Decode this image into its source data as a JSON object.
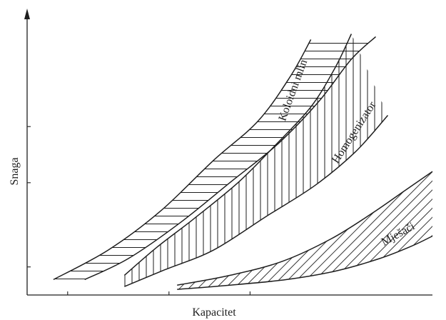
{
  "chart_data": {
    "type": "area",
    "title": "",
    "xlabel": "Kapacitet",
    "ylabel": "Snaga",
    "xlim": [
      0,
      10
    ],
    "ylim": [
      0,
      10
    ],
    "x_ticks": [
      1.0,
      3.5,
      5.5
    ],
    "y_ticks": [
      1.0,
      4.0,
      6.0
    ],
    "tick_labels_shown": false,
    "grid": false,
    "legend": "none",
    "units": "qualitative (no numeric scale printed)",
    "bands": [
      {
        "name": "Koloidni mlin",
        "hatch": "horizontal",
        "upper": [
          [
            0.65,
            0.55
          ],
          [
            2.0,
            1.6
          ],
          [
            3.3,
            3.0
          ],
          [
            4.6,
            4.8
          ],
          [
            5.7,
            6.2
          ],
          [
            6.5,
            7.8
          ],
          [
            7.0,
            9.1
          ]
        ],
        "lower": [
          [
            1.42,
            0.55
          ],
          [
            2.5,
            1.3
          ],
          [
            3.8,
            2.6
          ],
          [
            5.0,
            4.0
          ],
          [
            6.2,
            5.4
          ],
          [
            7.2,
            6.9
          ],
          [
            8.0,
            8.4
          ],
          [
            8.6,
            9.2
          ]
        ]
      },
      {
        "name": "Homogenizator",
        "hatch": "vertical",
        "upper": [
          [
            2.4,
            0.7
          ],
          [
            3.2,
            1.7
          ],
          [
            4.1,
            2.7
          ],
          [
            5.2,
            4.0
          ],
          [
            6.1,
            5.3
          ],
          [
            7.0,
            6.7
          ],
          [
            7.6,
            8.1
          ],
          [
            8.0,
            9.3
          ]
        ],
        "lower": [
          [
            2.4,
            0.3
          ],
          [
            3.4,
            0.9
          ],
          [
            4.6,
            1.6
          ],
          [
            5.9,
            2.8
          ],
          [
            7.1,
            3.9
          ],
          [
            8.1,
            5.1
          ],
          [
            8.9,
            6.4
          ]
        ]
      },
      {
        "name": "Mješači",
        "hatch": "diagonal",
        "upper": [
          [
            3.7,
            0.35
          ],
          [
            5.0,
            0.7
          ],
          [
            6.3,
            1.2
          ],
          [
            7.5,
            2.0
          ],
          [
            8.5,
            2.9
          ],
          [
            9.3,
            3.7
          ],
          [
            10.0,
            4.4
          ]
        ],
        "lower": [
          [
            3.7,
            0.2
          ],
          [
            5.0,
            0.35
          ],
          [
            6.4,
            0.55
          ],
          [
            7.6,
            0.85
          ],
          [
            8.7,
            1.3
          ],
          [
            9.5,
            1.75
          ],
          [
            10.0,
            2.1
          ]
        ]
      }
    ]
  }
}
